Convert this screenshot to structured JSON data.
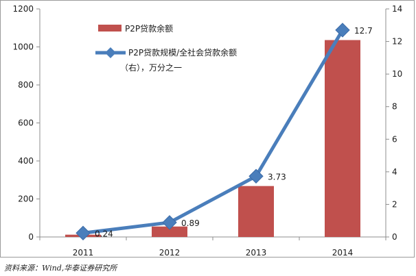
{
  "chart_data": {
    "type": "bar",
    "categories": [
      "2011",
      "2012",
      "2013",
      "2014"
    ],
    "series": [
      {
        "name": "P2P贷款余额",
        "type": "bar",
        "axis": "left",
        "color": "#C0504D",
        "values": [
          12,
          55,
          268,
          1036
        ]
      },
      {
        "name": "P2P贷款规模/全社会贷款余额",
        "name_line2": "（右），万分之一",
        "type": "line",
        "axis": "right",
        "color": "#4A7EBB",
        "marker": "diamond",
        "values": [
          0.24,
          0.89,
          3.73,
          12.7
        ],
        "data_labels": [
          "0.24",
          "0.89",
          "3.73",
          "12.7"
        ]
      }
    ],
    "y_left": {
      "min": 0,
      "max": 1200,
      "ticks": [
        "0",
        "200",
        "400",
        "600",
        "800",
        "1000",
        "1200"
      ]
    },
    "y_right": {
      "min": 0,
      "max": 14,
      "ticks": [
        "0",
        "2",
        "4",
        "6",
        "8",
        "10",
        "12",
        "14"
      ]
    },
    "grid": false,
    "legend_position": "top-left"
  },
  "source_note": "资料来源：Wind,华泰证券研究所"
}
